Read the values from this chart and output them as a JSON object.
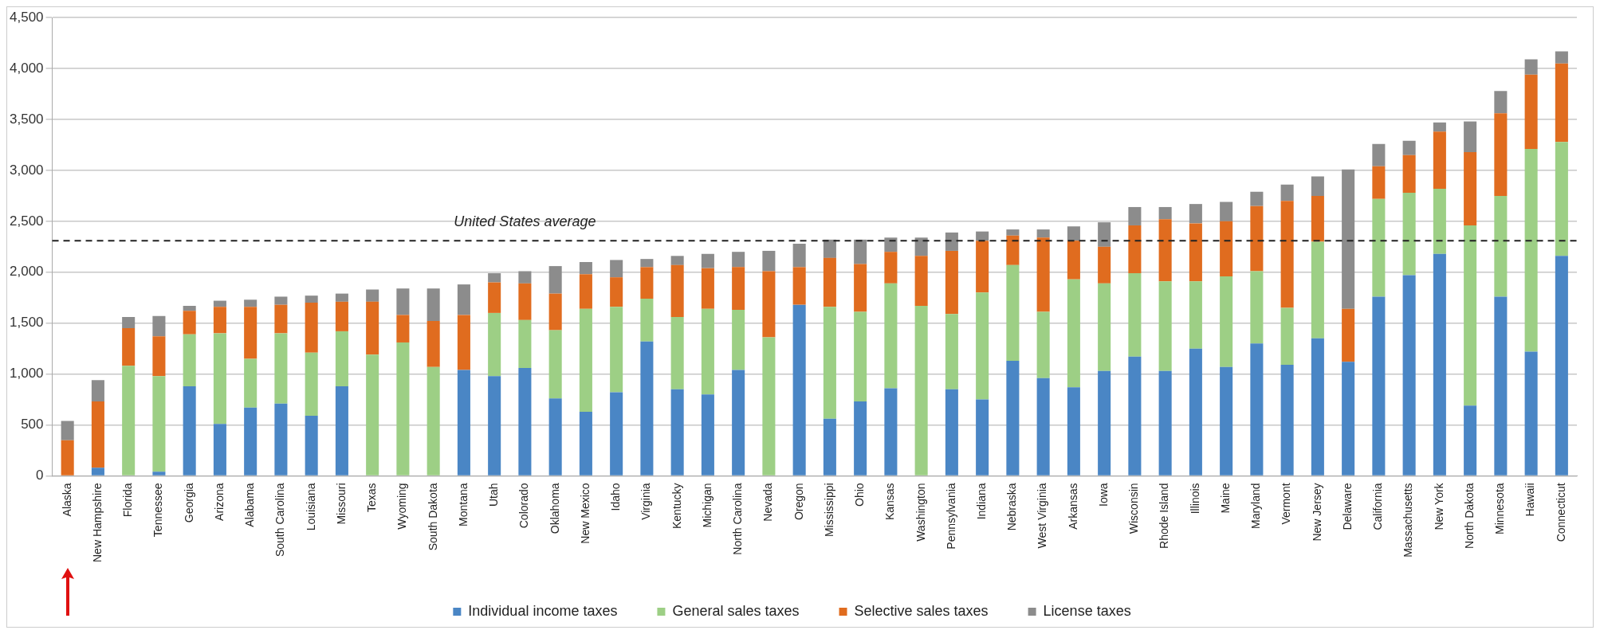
{
  "chart_data": {
    "type": "bar",
    "stacked": true,
    "categories": [
      "Alaska",
      "New Hampshire",
      "Florida",
      "Tennessee",
      "Georgia",
      "Arizona",
      "Alabama",
      "South Carolina",
      "Louisiana",
      "Missouri",
      "Texas",
      "Wyoming",
      "South Dakota",
      "Montana",
      "Utah",
      "Colorado",
      "Oklahoma",
      "New Mexico",
      "Idaho",
      "Virginia",
      "Kentucky",
      "Michigan",
      "North Carolina",
      "Nevada",
      "Oregon",
      "Mississippi",
      "Ohio",
      "Kansas",
      "Washington",
      "Pennsylvania",
      "Indiana",
      "Nebraska",
      "West Virginia",
      "Arkansas",
      "Iowa",
      "Wisconsin",
      "Rhode Island",
      "Illinois",
      "Maine",
      "Maryland",
      "Vermont",
      "New Jersey",
      "Delaware",
      "California",
      "Massachusetts",
      "New York",
      "North Dakota",
      "Minnesota",
      "Hawaii",
      "Connecticut"
    ],
    "series": [
      {
        "name": "Individual income taxes",
        "color": "#4a86c5",
        "values": [
          0,
          80,
          0,
          40,
          880,
          510,
          670,
          710,
          590,
          880,
          0,
          0,
          0,
          1040,
          980,
          1060,
          760,
          630,
          820,
          1320,
          850,
          800,
          1040,
          0,
          1680,
          560,
          730,
          860,
          0,
          850,
          750,
          1130,
          960,
          870,
          1030,
          1170,
          1030,
          1250,
          1070,
          1300,
          1090,
          1350,
          1120,
          1760,
          1970,
          2180,
          690,
          1760,
          1220,
          2160
        ]
      },
      {
        "name": "General sales taxes",
        "color": "#9dcf85",
        "values": [
          0,
          0,
          1080,
          940,
          510,
          890,
          480,
          690,
          620,
          540,
          1190,
          1310,
          1070,
          0,
          620,
          470,
          670,
          1010,
          840,
          420,
          710,
          840,
          590,
          1360,
          0,
          1100,
          880,
          1030,
          1670,
          740,
          1050,
          940,
          650,
          1060,
          860,
          820,
          880,
          660,
          890,
          710,
          560,
          950,
          0,
          960,
          810,
          640,
          1770,
          990,
          1990,
          1120
        ]
      },
      {
        "name": "Selective sales taxes",
        "color": "#e06c1f",
        "values": [
          350,
          650,
          370,
          390,
          230,
          260,
          510,
          280,
          490,
          290,
          520,
          270,
          450,
          540,
          300,
          360,
          360,
          340,
          290,
          310,
          510,
          400,
          420,
          650,
          370,
          480,
          470,
          310,
          490,
          620,
          510,
          290,
          730,
          380,
          360,
          470,
          610,
          570,
          540,
          640,
          1050,
          450,
          520,
          320,
          370,
          560,
          720,
          810,
          730,
          770
        ]
      },
      {
        "name": "License taxes",
        "color": "#8c8c8c",
        "values": [
          190,
          210,
          110,
          200,
          50,
          60,
          70,
          80,
          70,
          80,
          120,
          260,
          320,
          300,
          90,
          120,
          270,
          120,
          170,
          80,
          90,
          140,
          150,
          200,
          230,
          180,
          240,
          140,
          180,
          180,
          90,
          60,
          80,
          140,
          240,
          180,
          120,
          190,
          190,
          140,
          160,
          190,
          1370,
          220,
          140,
          90,
          300,
          220,
          150,
          120
        ]
      }
    ],
    "ylim": [
      0,
      4500
    ],
    "yticks": [
      {
        "value": 0,
        "label": "0"
      },
      {
        "value": 500,
        "label": "500"
      },
      {
        "value": 1000,
        "label": "1,000"
      },
      {
        "value": 1500,
        "label": "1,500"
      },
      {
        "value": 2000,
        "label": "2,000"
      },
      {
        "value": 2500,
        "label": "2,500"
      },
      {
        "value": 3000,
        "label": "3,000"
      },
      {
        "value": 3500,
        "label": "3,500"
      },
      {
        "value": 4000,
        "label": "4,000"
      },
      {
        "value": 4500,
        "label": "4,500"
      }
    ],
    "grid": "y",
    "legend": "bottom",
    "ref_lines": [
      {
        "axis": "y",
        "value": 2310,
        "label": "United States average",
        "color": "#222222",
        "line_style": "dashed"
      }
    ]
  }
}
